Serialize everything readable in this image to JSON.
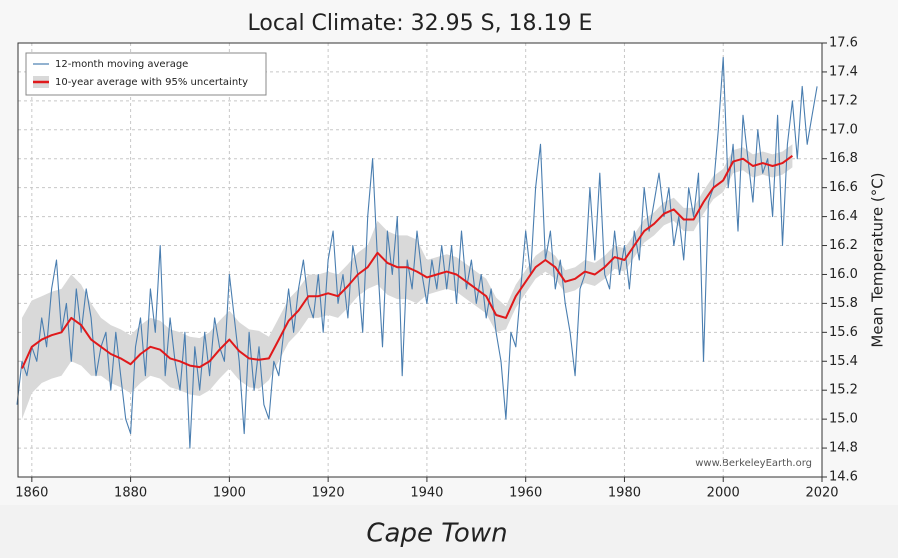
{
  "chart_data": {
    "type": "line",
    "title": "Local Climate: 32.95 S, 18.19 E",
    "caption": "Cape Town",
    "source_note": "www.BerkeleyEarth.org",
    "y_label": "Mean Temperature (°C)",
    "xlim": [
      1857.2,
      2020
    ],
    "xticks": [
      1860,
      1880,
      1900,
      1920,
      1940,
      1960,
      1980,
      2000,
      2020
    ],
    "ylim": [
      14.6,
      17.6
    ],
    "yticks": [
      14.6,
      14.8,
      {
        "value": 15,
        "label": "15.0"
      },
      15.2,
      15.4,
      15.6,
      15.8,
      {
        "value": 16,
        "label": "16.0"
      },
      16.2,
      16.4,
      16.6,
      16.8,
      {
        "value": 17,
        "label": "17.0"
      },
      17.2,
      17.4,
      17.6
    ],
    "grid": true,
    "legend": "upper left",
    "series": [
      {
        "name": "12-month moving average",
        "color": "#4a7eb0",
        "x": [
          1857,
          1858,
          1859,
          1860,
          1861,
          1862,
          1863,
          1864,
          1865,
          1866,
          1867,
          1868,
          1869,
          1870,
          1871,
          1872,
          1873,
          1874,
          1875,
          1876,
          1877,
          1878,
          1879,
          1880,
          1881,
          1882,
          1883,
          1884,
          1885,
          1886,
          1887,
          1888,
          1889,
          1890,
          1891,
          1892,
          1893,
          1894,
          1895,
          1896,
          1897,
          1898,
          1899,
          1900,
          1901,
          1902,
          1903,
          1904,
          1905,
          1906,
          1907,
          1908,
          1909,
          1910,
          1911,
          1912,
          1913,
          1914,
          1915,
          1916,
          1917,
          1918,
          1919,
          1920,
          1921,
          1922,
          1923,
          1924,
          1925,
          1926,
          1927,
          1928,
          1929,
          1930,
          1931,
          1932,
          1933,
          1934,
          1935,
          1936,
          1937,
          1938,
          1939,
          1940,
          1941,
          1942,
          1943,
          1944,
          1945,
          1946,
          1947,
          1948,
          1949,
          1950,
          1951,
          1952,
          1953,
          1954,
          1955,
          1956,
          1957,
          1958,
          1959,
          1960,
          1961,
          1962,
          1963,
          1964,
          1965,
          1966,
          1967,
          1968,
          1969,
          1970,
          1971,
          1972,
          1973,
          1974,
          1975,
          1976,
          1977,
          1978,
          1979,
          1980,
          1981,
          1982,
          1983,
          1984,
          1985,
          1986,
          1987,
          1988,
          1989,
          1990,
          1991,
          1992,
          1993,
          1994,
          1995,
          1996,
          1997,
          1998,
          1999,
          2000,
          2001,
          2002,
          2003,
          2004,
          2005,
          2006,
          2007,
          2008,
          2009,
          2010,
          2011,
          2012,
          2013,
          2014,
          2015,
          2016,
          2017,
          2018,
          2019
        ],
        "values": [
          15.1,
          15.4,
          15.3,
          15.5,
          15.4,
          15.7,
          15.5,
          15.9,
          16.1,
          15.6,
          15.8,
          15.4,
          15.9,
          15.6,
          15.9,
          15.7,
          15.3,
          15.5,
          15.6,
          15.2,
          15.6,
          15.3,
          15.0,
          14.9,
          15.5,
          15.7,
          15.3,
          15.9,
          15.6,
          16.2,
          15.3,
          15.7,
          15.4,
          15.2,
          15.6,
          14.8,
          15.5,
          15.2,
          15.6,
          15.3,
          15.7,
          15.5,
          15.4,
          16.0,
          15.7,
          15.4,
          14.9,
          15.6,
          15.2,
          15.5,
          15.1,
          15.0,
          15.4,
          15.3,
          15.6,
          15.9,
          15.6,
          15.9,
          16.1,
          15.8,
          15.7,
          16.0,
          15.6,
          16.1,
          16.3,
          15.8,
          16.0,
          15.7,
          16.2,
          16.0,
          15.6,
          16.4,
          16.8,
          16.1,
          15.5,
          16.3,
          16.0,
          16.4,
          15.3,
          16.1,
          15.9,
          16.3,
          16.0,
          15.8,
          16.1,
          15.9,
          16.2,
          15.9,
          16.2,
          15.8,
          16.3,
          15.9,
          16.1,
          15.8,
          16.0,
          15.7,
          15.9,
          15.6,
          15.4,
          15.0,
          15.6,
          15.5,
          15.9,
          16.3,
          16.0,
          16.6,
          16.9,
          16.1,
          16.3,
          15.9,
          16.1,
          15.8,
          15.6,
          15.3,
          15.9,
          16.0,
          16.6,
          16.1,
          16.7,
          16.0,
          15.9,
          16.3,
          16.0,
          16.2,
          15.9,
          16.3,
          16.1,
          16.6,
          16.3,
          16.5,
          16.7,
          16.4,
          16.6,
          16.2,
          16.4,
          16.1,
          16.6,
          16.4,
          16.7,
          15.4,
          16.5,
          16.6,
          17.0,
          17.5,
          16.6,
          16.9,
          16.3,
          17.1,
          16.8,
          16.5,
          17.0,
          16.7,
          16.8,
          16.4,
          17.1,
          16.2,
          16.9,
          17.2,
          16.8,
          17.3,
          16.9,
          17.1,
          17.3
        ]
      },
      {
        "name": "10-year average with 95% uncertainty",
        "color": "#e0191b",
        "band_color": "#d9d9d9",
        "x": [
          1858,
          1860,
          1862,
          1864,
          1866,
          1868,
          1870,
          1872,
          1874,
          1876,
          1878,
          1880,
          1882,
          1884,
          1886,
          1888,
          1890,
          1892,
          1894,
          1896,
          1898,
          1900,
          1902,
          1904,
          1906,
          1908,
          1910,
          1912,
          1914,
          1916,
          1918,
          1920,
          1922,
          1924,
          1926,
          1928,
          1930,
          1932,
          1934,
          1936,
          1938,
          1940,
          1942,
          1944,
          1946,
          1948,
          1950,
          1952,
          1954,
          1956,
          1958,
          1960,
          1962,
          1964,
          1966,
          1968,
          1970,
          1972,
          1974,
          1976,
          1978,
          1980,
          1982,
          1984,
          1986,
          1988,
          1990,
          1992,
          1994,
          1996,
          1998,
          2000,
          2002,
          2004,
          2006,
          2008,
          2010,
          2012,
          2014
        ],
        "values": [
          15.35,
          15.5,
          15.55,
          15.58,
          15.6,
          15.7,
          15.65,
          15.55,
          15.5,
          15.45,
          15.42,
          15.38,
          15.45,
          15.5,
          15.48,
          15.42,
          15.4,
          15.37,
          15.36,
          15.4,
          15.48,
          15.55,
          15.47,
          15.42,
          15.41,
          15.42,
          15.55,
          15.68,
          15.75,
          15.85,
          15.85,
          15.87,
          15.85,
          15.92,
          16.0,
          16.05,
          16.15,
          16.08,
          16.05,
          16.05,
          16.02,
          15.98,
          16.0,
          16.02,
          16.0,
          15.95,
          15.9,
          15.85,
          15.72,
          15.7,
          15.85,
          15.95,
          16.05,
          16.1,
          16.05,
          15.95,
          15.97,
          16.02,
          16.0,
          16.05,
          16.12,
          16.1,
          16.2,
          16.3,
          16.35,
          16.42,
          16.45,
          16.38,
          16.38,
          16.5,
          16.6,
          16.65,
          16.78,
          16.8,
          16.75,
          16.77,
          16.75,
          16.77,
          16.82
        ],
        "lower": [
          15.0,
          15.18,
          15.25,
          15.28,
          15.3,
          15.4,
          15.37,
          15.3,
          15.3,
          15.25,
          15.22,
          15.18,
          15.25,
          15.3,
          15.28,
          15.22,
          15.2,
          15.17,
          15.16,
          15.2,
          15.28,
          15.35,
          15.27,
          15.22,
          15.21,
          15.27,
          15.4,
          15.53,
          15.6,
          15.7,
          15.7,
          15.72,
          15.7,
          15.77,
          15.85,
          15.9,
          15.93,
          15.86,
          15.83,
          15.83,
          15.8,
          15.86,
          15.88,
          15.9,
          15.88,
          15.83,
          15.78,
          15.73,
          15.6,
          15.62,
          15.77,
          15.87,
          15.97,
          16.02,
          15.97,
          15.87,
          15.89,
          15.94,
          15.92,
          15.97,
          16.04,
          16.02,
          16.12,
          16.22,
          16.27,
          16.34,
          16.37,
          16.3,
          16.3,
          16.42,
          16.52,
          16.57,
          16.7,
          16.72,
          16.67,
          16.69,
          16.67,
          16.69,
          16.74
        ],
        "upper": [
          15.7,
          15.82,
          15.85,
          15.88,
          15.9,
          16.0,
          15.93,
          15.8,
          15.7,
          15.65,
          15.62,
          15.58,
          15.65,
          15.7,
          15.68,
          15.62,
          15.6,
          15.57,
          15.56,
          15.6,
          15.68,
          15.75,
          15.67,
          15.62,
          15.61,
          15.57,
          15.7,
          15.83,
          15.9,
          16.0,
          16.0,
          16.02,
          16.0,
          16.07,
          16.15,
          16.2,
          16.37,
          16.3,
          16.27,
          16.27,
          16.24,
          16.1,
          16.12,
          16.14,
          16.12,
          16.07,
          16.02,
          15.97,
          15.84,
          15.78,
          15.93,
          16.03,
          16.13,
          16.18,
          16.13,
          16.03,
          16.05,
          16.1,
          16.08,
          16.13,
          16.2,
          16.18,
          16.28,
          16.38,
          16.43,
          16.5,
          16.53,
          16.46,
          16.46,
          16.58,
          16.68,
          16.73,
          16.86,
          16.88,
          16.83,
          16.85,
          16.83,
          16.85,
          16.9
        ]
      }
    ]
  }
}
